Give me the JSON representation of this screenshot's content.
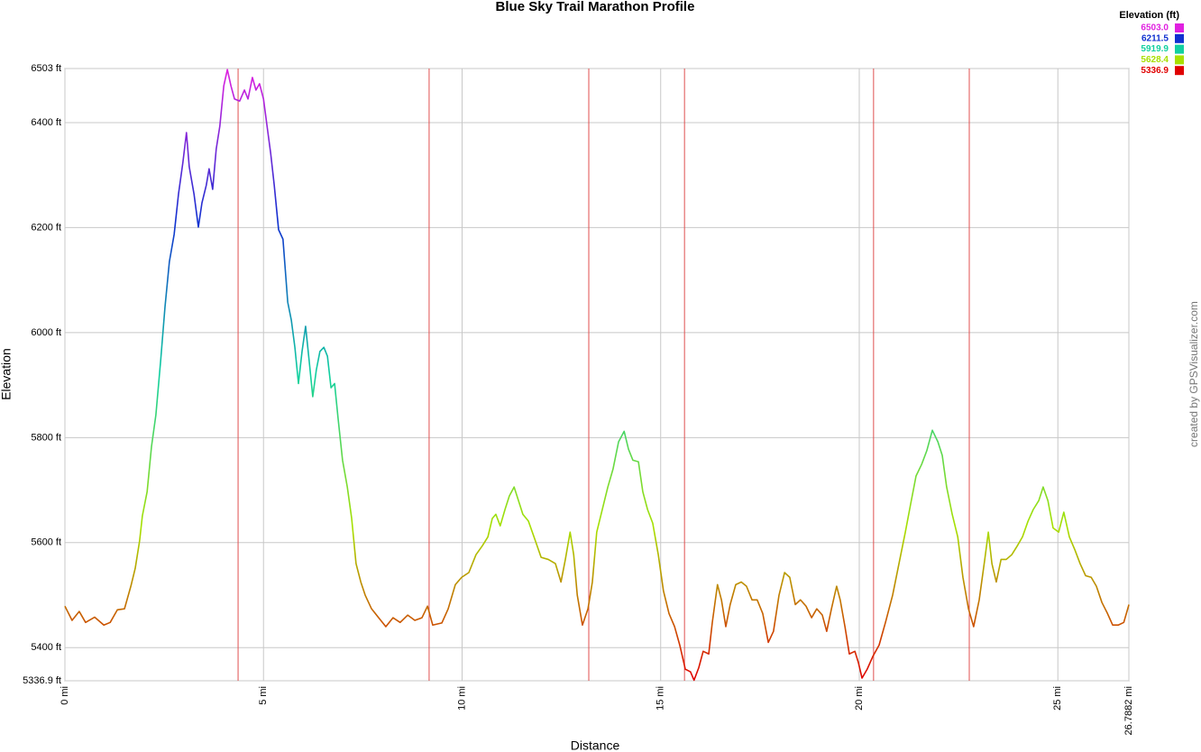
{
  "chart_data": {
    "type": "line",
    "title": "Blue Sky Trail Marathon Profile",
    "x_label": "Distance",
    "y_label": "Elevation",
    "credit": "created by GPSVisualizer.com",
    "legend_title": "Elevation (ft)",
    "colorscale": [
      {
        "value": 6503.0,
        "label": "6503.0",
        "color": "#e020e0"
      },
      {
        "value": 6211.5,
        "label": "6211.5",
        "color": "#1030d0"
      },
      {
        "value": 5919.9,
        "label": "5919.9",
        "color": "#10d0a0"
      },
      {
        "value": 5628.4,
        "label": "5628.4",
        "color": "#a8e000"
      },
      {
        "value": 5336.9,
        "label": "5336.9",
        "color": "#e00000"
      }
    ],
    "xlim": [
      0,
      26.7882
    ],
    "ylim": [
      5336.9,
      6503
    ],
    "xticks": [
      {
        "value": 0,
        "label": "0 mi"
      },
      {
        "value": 5,
        "label": "5 mi"
      },
      {
        "value": 10,
        "label": "10 mi"
      },
      {
        "value": 15,
        "label": "15 mi"
      },
      {
        "value": 20,
        "label": "20 mi"
      },
      {
        "value": 25,
        "label": "25 mi"
      },
      {
        "value": 26.7882,
        "label": "26.7882 mi"
      }
    ],
    "yticks": [
      {
        "value": 5336.9,
        "label": "5336.9 ft"
      },
      {
        "value": 5400,
        "label": "5400 ft"
      },
      {
        "value": 5600,
        "label": "5600 ft"
      },
      {
        "value": 5800,
        "label": "5800 ft"
      },
      {
        "value": 6000,
        "label": "6000 ft"
      },
      {
        "value": 6200,
        "label": "6200 ft"
      },
      {
        "value": 6400,
        "label": "6400 ft"
      },
      {
        "value": 6503,
        "label": "6503 ft"
      }
    ],
    "grid": true,
    "marker_lines": [
      4.36,
      9.17,
      13.19,
      15.6,
      20.36,
      22.77
    ],
    "marker_color": "#e05050",
    "x": [
      0,
      0.18,
      0.36,
      0.52,
      0.75,
      0.98,
      1.14,
      1.32,
      1.5,
      1.66,
      1.77,
      1.88,
      1.95,
      2.07,
      2.18,
      2.29,
      2.41,
      2.52,
      2.63,
      2.75,
      2.86,
      2.97,
      3.06,
      3.13,
      3.25,
      3.36,
      3.45,
      3.56,
      3.63,
      3.72,
      3.81,
      3.9,
      4.0,
      4.09,
      4.18,
      4.27,
      4.4,
      4.52,
      4.61,
      4.72,
      4.81,
      4.9,
      5.0,
      5.09,
      5.18,
      5.27,
      5.38,
      5.49,
      5.61,
      5.7,
      5.79,
      5.88,
      5.97,
      6.06,
      6.15,
      6.24,
      6.33,
      6.42,
      6.52,
      6.61,
      6.7,
      6.79,
      6.88,
      6.99,
      7.11,
      7.22,
      7.33,
      7.45,
      7.56,
      7.72,
      7.9,
      8.08,
      8.26,
      8.44,
      8.63,
      8.81,
      8.99,
      9.13,
      9.26,
      9.49,
      9.65,
      9.83,
      9.99,
      10.17,
      10.35,
      10.51,
      10.65,
      10.76,
      10.85,
      10.96,
      11.08,
      11.19,
      11.31,
      11.42,
      11.53,
      11.67,
      11.81,
      11.99,
      12.17,
      12.35,
      12.49,
      12.6,
      12.72,
      12.81,
      12.9,
      13.03,
      13.17,
      13.28,
      13.39,
      13.53,
      13.67,
      13.8,
      13.94,
      14.08,
      14.19,
      14.3,
      14.44,
      14.55,
      14.67,
      14.8,
      14.94,
      15.07,
      15.21,
      15.35,
      15.48,
      15.62,
      15.75,
      15.84,
      15.96,
      16.07,
      16.21,
      16.3,
      16.43,
      16.53,
      16.64,
      16.75,
      16.89,
      17.03,
      17.16,
      17.3,
      17.43,
      17.57,
      17.71,
      17.84,
      17.98,
      18.12,
      18.25,
      18.39,
      18.52,
      18.66,
      18.8,
      18.93,
      19.07,
      19.18,
      19.3,
      19.43,
      19.52,
      19.64,
      19.75,
      19.89,
      19.98,
      20.07,
      20.2,
      20.34,
      20.5,
      20.66,
      20.84,
      21.0,
      21.16,
      21.29,
      21.43,
      21.57,
      21.7,
      21.84,
      21.98,
      22.09,
      22.2,
      22.34,
      22.48,
      22.61,
      22.75,
      22.88,
      23.02,
      23.16,
      23.25,
      23.34,
      23.45,
      23.57,
      23.7,
      23.84,
      23.98,
      24.11,
      24.25,
      24.38,
      24.52,
      24.63,
      24.75,
      24.88,
      25.02,
      25.15,
      25.29,
      25.43,
      25.56,
      25.7,
      25.84,
      25.97,
      26.11,
      26.25,
      26.38,
      26.52,
      26.66,
      26.79
    ],
    "series": [
      {
        "name": "Elevation",
        "values": [
          5479,
          5452,
          5469,
          5448,
          5458,
          5443,
          5448,
          5472,
          5474,
          5517,
          5551,
          5603,
          5651,
          5697,
          5783,
          5843,
          5946,
          6049,
          6135,
          6187,
          6264,
          6324,
          6381,
          6316,
          6264,
          6201,
          6247,
          6281,
          6312,
          6273,
          6350,
          6393,
          6470,
          6501,
          6470,
          6445,
          6441,
          6462,
          6445,
          6486,
          6462,
          6474,
          6445,
          6393,
          6342,
          6281,
          6196,
          6178,
          6058,
          6024,
          5972,
          5903,
          5964,
          6012,
          5946,
          5878,
          5929,
          5964,
          5972,
          5955,
          5895,
          5903,
          5835,
          5757,
          5706,
          5646,
          5560,
          5525,
          5500,
          5474,
          5457,
          5440,
          5457,
          5448,
          5462,
          5452,
          5457,
          5479,
          5443,
          5447,
          5474,
          5520,
          5534,
          5543,
          5577,
          5594,
          5611,
          5646,
          5654,
          5632,
          5663,
          5689,
          5706,
          5680,
          5654,
          5641,
          5611,
          5572,
          5568,
          5560,
          5525,
          5568,
          5620,
          5577,
          5500,
          5443,
          5474,
          5525,
          5620,
          5663,
          5706,
          5740,
          5792,
          5812,
          5778,
          5757,
          5754,
          5697,
          5663,
          5637,
          5577,
          5508,
          5465,
          5440,
          5405,
          5359,
          5354,
          5338,
          5362,
          5393,
          5388,
          5448,
          5520,
          5491,
          5440,
          5482,
          5520,
          5525,
          5517,
          5491,
          5491,
          5465,
          5410,
          5431,
          5500,
          5543,
          5534,
          5482,
          5491,
          5479,
          5457,
          5474,
          5462,
          5431,
          5474,
          5517,
          5491,
          5440,
          5388,
          5393,
          5371,
          5342,
          5359,
          5383,
          5405,
          5448,
          5500,
          5560,
          5620,
          5672,
          5727,
          5749,
          5775,
          5814,
          5792,
          5766,
          5706,
          5654,
          5611,
          5534,
          5474,
          5440,
          5491,
          5568,
          5620,
          5560,
          5525,
          5568,
          5568,
          5577,
          5594,
          5611,
          5641,
          5663,
          5680,
          5706,
          5680,
          5628,
          5620,
          5658,
          5611,
          5586,
          5560,
          5537,
          5534,
          5517,
          5486,
          5465,
          5443,
          5443,
          5448,
          5482
        ]
      }
    ]
  }
}
